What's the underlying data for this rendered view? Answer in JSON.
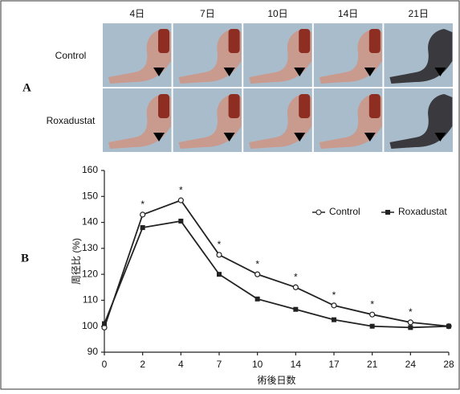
{
  "panel_labels": [
    "A",
    "B"
  ],
  "photo_grid": {
    "columns": [
      "4日",
      "7日",
      "10日",
      "14日",
      "21日"
    ],
    "rows": [
      "Control",
      "Roxadustat"
    ]
  },
  "chart_data": {
    "type": "line",
    "categories": [
      "0",
      "2",
      "4",
      "7",
      "10",
      "14",
      "17",
      "21",
      "24",
      "28"
    ],
    "series": [
      {
        "name": "Control",
        "color": "#222222",
        "marker": "open-circle",
        "values": [
          99.5,
          143,
          148.5,
          127.5,
          120,
          115,
          108,
          104.5,
          101.5,
          100
        ]
      },
      {
        "name": "Roxadustat",
        "color": "#222222",
        "marker": "filled-square",
        "values": [
          101,
          138,
          140.5,
          120,
          110.5,
          106.5,
          102.5,
          100,
          99.5,
          100
        ]
      }
    ],
    "significance_marks": [
      null,
      "*",
      "*",
      "*",
      "*",
      "*",
      "*",
      "*",
      "*",
      null
    ],
    "xlabel": "術後日数",
    "ylabel": "周径比 (%)",
    "ylim": [
      90,
      160
    ],
    "yticks": [
      90,
      100,
      110,
      120,
      130,
      140,
      150,
      160
    ],
    "legend": "upper right",
    "grid": false
  }
}
